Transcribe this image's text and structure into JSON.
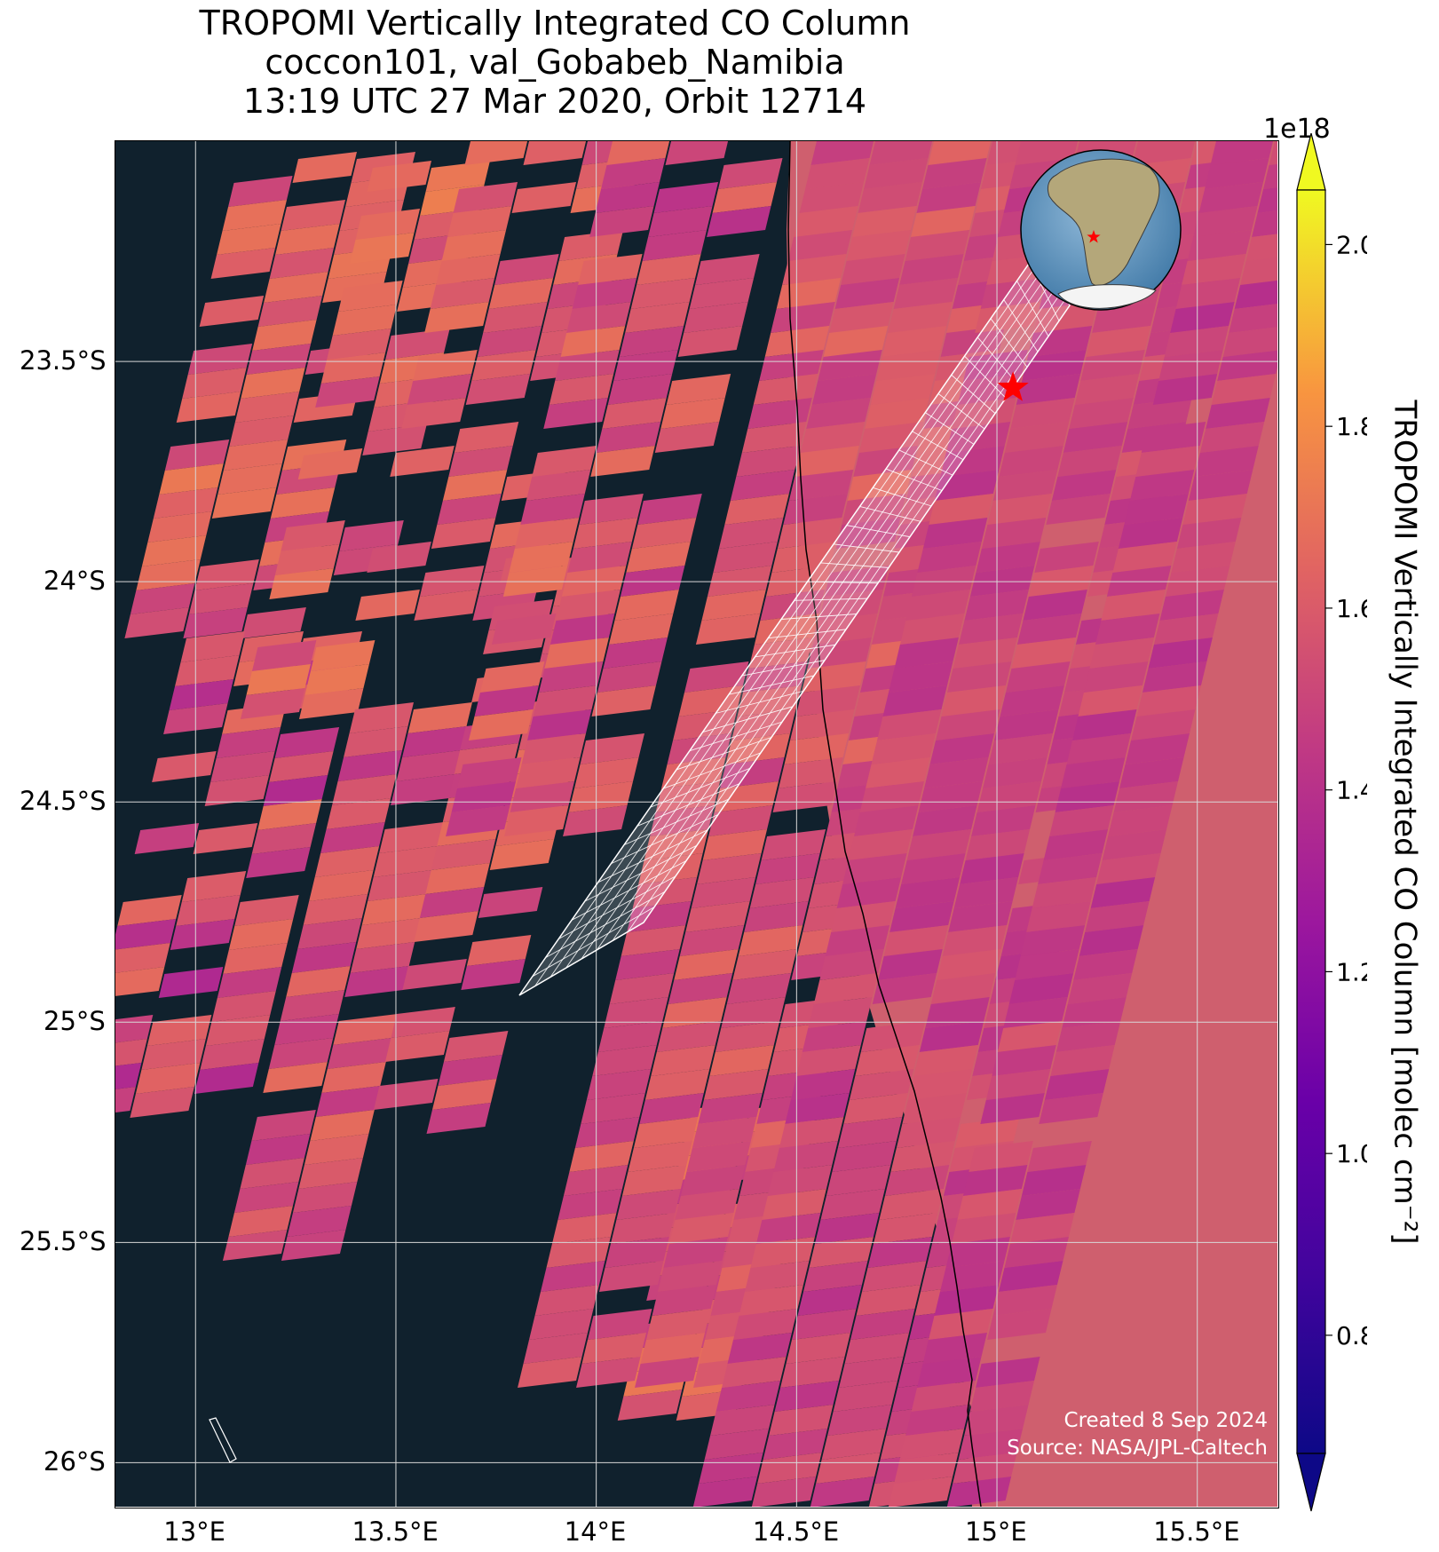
{
  "title": {
    "line1": "TROPOMI Vertically Integrated CO Column",
    "line2": "coccon101, val_Gobabeb_Namibia",
    "line3": "13:19 UTC 27 Mar 2020, Orbit 12714"
  },
  "credits": {
    "created": "Created 8 Sep 2024",
    "source": "Source: NASA/JPL-Caltech"
  },
  "colorbar": {
    "label": "TROPOMI Vertically Integrated CO Column [molec cm⁻²]",
    "exponent": "1e18",
    "colormap": "plasma",
    "vmin": 0.67,
    "vmax": 2.06,
    "extend": "both",
    "ticks": [
      "0.8",
      "1.0",
      "1.2",
      "1.4",
      "1.6",
      "1.8",
      "2.0"
    ]
  },
  "map": {
    "lon_range": [
      12.8,
      15.7
    ],
    "lat_range": [
      -26.1,
      -23.0
    ],
    "lon_ticks": [
      "13°E",
      "13.5°E",
      "14°E",
      "14.5°E",
      "15°E",
      "15.5°E"
    ],
    "lat_ticks": [
      "23.5°S",
      "24°S",
      "24.5°S",
      "25°S",
      "25.5°S",
      "26°S"
    ],
    "ocean_color": "#10212d",
    "site": {
      "lon": 15.04,
      "lat": -23.56,
      "marker": "red-star"
    },
    "inset": "globe-africa-location"
  }
}
